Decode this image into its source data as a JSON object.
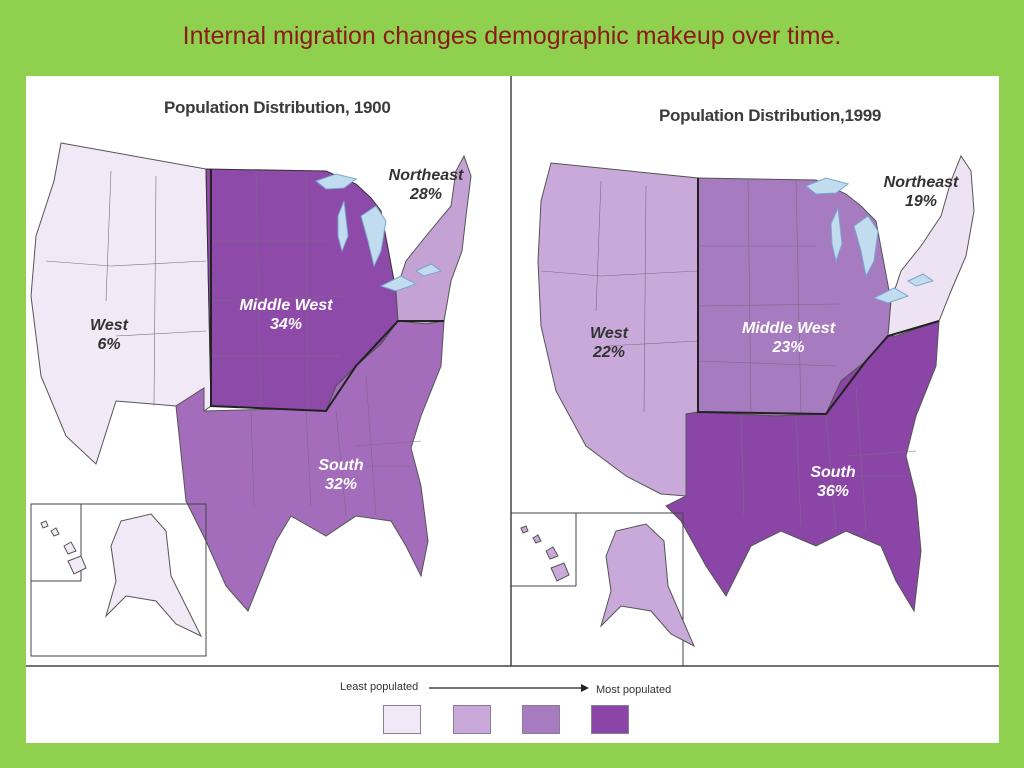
{
  "slide": {
    "title": "Internal migration changes demographic makeup over time."
  },
  "maps": [
    {
      "title": "Population Distribution, 1900",
      "regions": [
        {
          "name": "West",
          "percent": "6%",
          "color": "#f1e9f6"
        },
        {
          "name": "Middle West",
          "percent": "34%",
          "color": "#8e4aa8"
        },
        {
          "name": "Northeast",
          "percent": "28%",
          "color": "#c4a2d4"
        },
        {
          "name": "South",
          "percent": "32%",
          "color": "#a46dbc"
        }
      ]
    },
    {
      "title": "Population Distribution,1999",
      "regions": [
        {
          "name": "West",
          "percent": "22%",
          "color": "#c9a9d9"
        },
        {
          "name": "Middle West",
          "percent": "23%",
          "color": "#a67bbf"
        },
        {
          "name": "Northeast",
          "percent": "19%",
          "color": "#ede3f3"
        },
        {
          "name": "South",
          "percent": "36%",
          "color": "#8b45a6"
        }
      ]
    }
  ],
  "legend": {
    "least_label": "Least populated",
    "most_label": "Most populated",
    "swatch_colors": [
      "#f1e9f6",
      "#c9a9d9",
      "#a67bbf",
      "#8b45a6"
    ]
  },
  "colors": {
    "water": "#c2dcef",
    "background": "#8fd14f",
    "title_color": "#8b1a1a"
  }
}
